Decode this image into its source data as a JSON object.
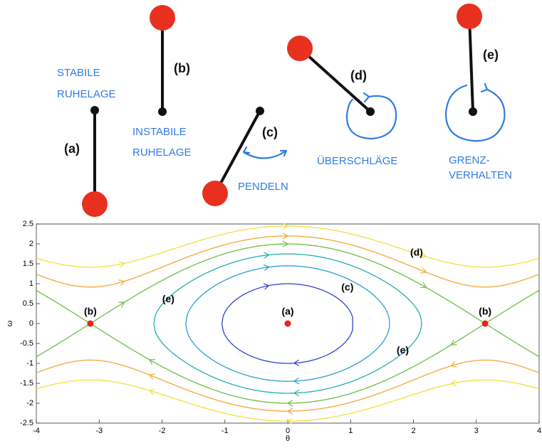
{
  "diagram": {
    "pendulums": [
      {
        "label": "(a)",
        "caption": [
          "STABILE",
          "RUHELAGE"
        ]
      },
      {
        "label": "(b)",
        "caption": [
          "INSTABILE",
          "RUHELAGE"
        ]
      },
      {
        "label": "(c)",
        "caption": [
          "PENDELN"
        ]
      },
      {
        "label": "(d)",
        "caption": [
          "ÜBERSCHLÄGE"
        ]
      },
      {
        "label": "(e)",
        "caption": [
          "GRENZ-",
          "VERHALTEN"
        ]
      }
    ]
  },
  "chart_data": {
    "type": "phase-portrait",
    "x_label": "θ",
    "y_label": "ω",
    "xlim": [
      -4,
      4
    ],
    "xticks": [
      -4,
      -3,
      -2,
      -1,
      0,
      1,
      2,
      3,
      4
    ],
    "ylim": [
      -2.5,
      2.5
    ],
    "yticks": [
      -2.5,
      -2,
      -1.5,
      -1,
      -0.5,
      0,
      0.5,
      1,
      1.5,
      2,
      2.5
    ],
    "series": [
      {
        "color": "#3543c8",
        "peak": 1.0
      },
      {
        "color": "#2a9fd0",
        "peak": 1.45
      },
      {
        "color": "#23b1a6",
        "peak": 1.75
      },
      {
        "color": "#6cbe44",
        "peak": 2.0
      },
      {
        "color": "#f2a73b",
        "peak": 2.2
      },
      {
        "color": "#f1e03c",
        "peak": 2.45
      }
    ],
    "points": {
      "x": [
        -3.14,
        0,
        3.14
      ],
      "y": [
        0,
        0,
        0
      ],
      "labels": [
        "(b)",
        "(a)",
        "(b)"
      ],
      "color": "#e8231a"
    },
    "annotations": [
      "(c)",
      "(d)",
      "(e)",
      "(e)"
    ]
  }
}
